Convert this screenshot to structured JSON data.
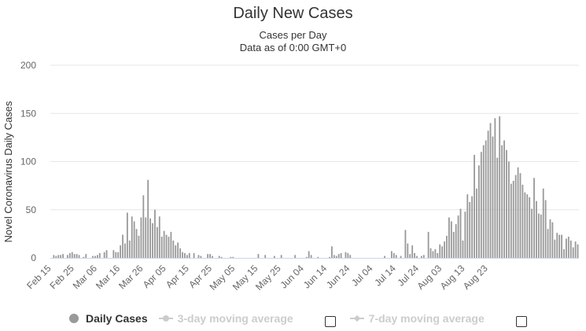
{
  "chart_data": {
    "type": "bar",
    "title": "Daily New Cases",
    "subtitle": [
      "Cases per Day",
      "Data as of 0:00 GMT+0"
    ],
    "ylabel": "Novel Coronavirus Daily Cases",
    "ylim": [
      0,
      200
    ],
    "yticks": [
      0,
      50,
      100,
      150,
      200
    ],
    "grid": true,
    "xtick_labels": [
      "Feb 15",
      "Feb 25",
      "Mar 06",
      "Mar 16",
      "Mar 26",
      "Apr 05",
      "Apr 15",
      "Apr 25",
      "May 05",
      "May 15",
      "May 25",
      "Jun 04",
      "Jun 14",
      "Jun 24",
      "Jul 04",
      "Jul 14",
      "Jul 24",
      "Aug 03",
      "Aug 13",
      "Aug 23"
    ],
    "start_date": "Feb 15",
    "bar_color": "#999999",
    "series": [
      {
        "name": "Daily Cases",
        "values": [
          0,
          3,
          2,
          3,
          3,
          4,
          0,
          3,
          5,
          6,
          4,
          4,
          3,
          0,
          1,
          4,
          0,
          0,
          2,
          2,
          3,
          5,
          0,
          6,
          8,
          0,
          0,
          8,
          6,
          6,
          13,
          24,
          15,
          47,
          18,
          43,
          38,
          30,
          23,
          42,
          65,
          42,
          81,
          41,
          36,
          50,
          32,
          43,
          22,
          28,
          24,
          22,
          27,
          18,
          13,
          16,
          10,
          6,
          5,
          3,
          5,
          0,
          5,
          0,
          3,
          2,
          0,
          0,
          4,
          4,
          2,
          0,
          0,
          2,
          1,
          0,
          0,
          0,
          1,
          1,
          0,
          0,
          0,
          0,
          0,
          0,
          0,
          0,
          0,
          0,
          4,
          0,
          0,
          3,
          0,
          0,
          0,
          2,
          0,
          0,
          3,
          0,
          0,
          0,
          0,
          0,
          3,
          0,
          0,
          0,
          0,
          1,
          7,
          3,
          0,
          0,
          1,
          0,
          0,
          0,
          0,
          1,
          12,
          3,
          2,
          4,
          5,
          0,
          6,
          5,
          3,
          0,
          0,
          0,
          0,
          0,
          0,
          0,
          0,
          0,
          0,
          0,
          0,
          0,
          0,
          2,
          0,
          0,
          7,
          5,
          3,
          0,
          2,
          0,
          29,
          15,
          4,
          13,
          5,
          2,
          0,
          2,
          3,
          0,
          27,
          10,
          7,
          9,
          5,
          14,
          12,
          17,
          23,
          42,
          38,
          27,
          35,
          44,
          51,
          18,
          48,
          66,
          58,
          64,
          107,
          72,
          96,
          110,
          117,
          122,
          132,
          140,
          126,
          145,
          104,
          147,
          117,
          122,
          112,
          100,
          77,
          80,
          86,
          94,
          88,
          76,
          68,
          66,
          63,
          51,
          83,
          59,
          46,
          45,
          72,
          60,
          30,
          40,
          37,
          19,
          26,
          24,
          24,
          9,
          20,
          22,
          18,
          11,
          17,
          14
        ]
      }
    ],
    "legend": {
      "position": "bottom-left",
      "items": [
        {
          "label": "Daily Cases",
          "enabled": true
        },
        {
          "label": "3-day moving average",
          "enabled": false
        },
        {
          "label": "7-day moving average",
          "enabled": false
        }
      ]
    }
  }
}
